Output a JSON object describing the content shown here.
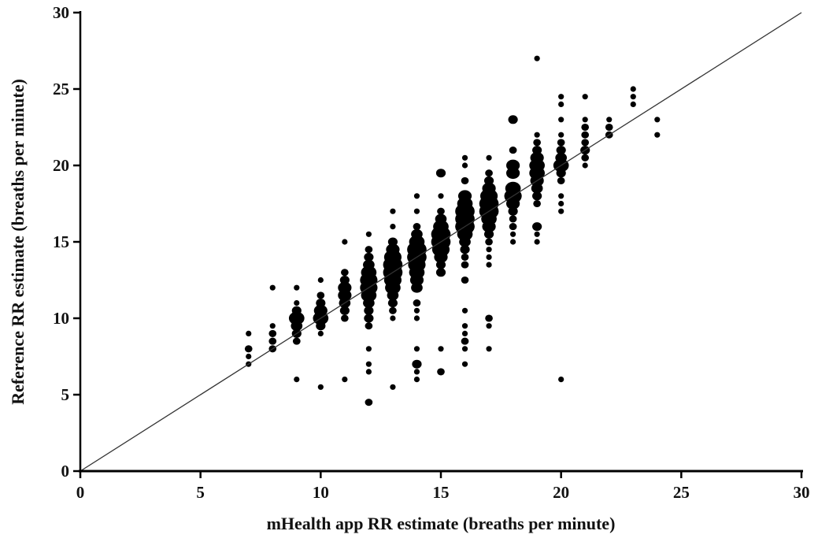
{
  "chart_data": {
    "type": "scatter",
    "xlabel": "mHealth app RR estimate (breaths per minute)",
    "ylabel": "Reference RR estimate (breaths per minute)",
    "xlim": [
      0,
      30
    ],
    "ylim": [
      0,
      30
    ],
    "xticks": [
      "0",
      "5",
      "10",
      "15",
      "20",
      "25",
      "30"
    ],
    "yticks": [
      "0",
      "5",
      "10",
      "15",
      "20",
      "25",
      "30"
    ],
    "grid": false,
    "identity_line": true,
    "point_size_encodes": "frequency of observations",
    "colors": {
      "points": "#000000",
      "axis": "#000000",
      "identity_line": "#333333"
    },
    "points": [
      {
        "x": 7,
        "y": 9,
        "n": 1
      },
      {
        "x": 7,
        "y": 8,
        "n": 2
      },
      {
        "x": 7,
        "y": 7.5,
        "n": 1
      },
      {
        "x": 7,
        "y": 7,
        "n": 1
      },
      {
        "x": 8,
        "y": 12,
        "n": 1
      },
      {
        "x": 8,
        "y": 9.5,
        "n": 1
      },
      {
        "x": 8,
        "y": 9,
        "n": 2
      },
      {
        "x": 8,
        "y": 8.5,
        "n": 2
      },
      {
        "x": 8,
        "y": 8,
        "n": 2
      },
      {
        "x": 9,
        "y": 12,
        "n": 1
      },
      {
        "x": 9,
        "y": 11,
        "n": 1
      },
      {
        "x": 9,
        "y": 10.5,
        "n": 3
      },
      {
        "x": 9,
        "y": 10,
        "n": 6
      },
      {
        "x": 9,
        "y": 9.5,
        "n": 4
      },
      {
        "x": 9,
        "y": 9,
        "n": 3
      },
      {
        "x": 9,
        "y": 8.5,
        "n": 2
      },
      {
        "x": 9,
        "y": 6,
        "n": 1
      },
      {
        "x": 10,
        "y": 12.5,
        "n": 1
      },
      {
        "x": 10,
        "y": 11.5,
        "n": 2
      },
      {
        "x": 10,
        "y": 11,
        "n": 3
      },
      {
        "x": 10,
        "y": 10.5,
        "n": 5
      },
      {
        "x": 10,
        "y": 10,
        "n": 6
      },
      {
        "x": 10,
        "y": 9.5,
        "n": 3
      },
      {
        "x": 10,
        "y": 9,
        "n": 1
      },
      {
        "x": 10,
        "y": 5.5,
        "n": 1
      },
      {
        "x": 11,
        "y": 15,
        "n": 1
      },
      {
        "x": 11,
        "y": 13,
        "n": 2
      },
      {
        "x": 11,
        "y": 12.5,
        "n": 3
      },
      {
        "x": 11,
        "y": 12,
        "n": 5
      },
      {
        "x": 11,
        "y": 11.5,
        "n": 5
      },
      {
        "x": 11,
        "y": 11,
        "n": 4
      },
      {
        "x": 11,
        "y": 10.5,
        "n": 3
      },
      {
        "x": 11,
        "y": 10,
        "n": 2
      },
      {
        "x": 11,
        "y": 6,
        "n": 1
      },
      {
        "x": 12,
        "y": 15.5,
        "n": 1
      },
      {
        "x": 12,
        "y": 14.5,
        "n": 2
      },
      {
        "x": 12,
        "y": 14,
        "n": 3
      },
      {
        "x": 12,
        "y": 13.5,
        "n": 4
      },
      {
        "x": 12,
        "y": 13,
        "n": 6
      },
      {
        "x": 12,
        "y": 12.5,
        "n": 7
      },
      {
        "x": 12,
        "y": 12,
        "n": 7
      },
      {
        "x": 12,
        "y": 11.5,
        "n": 6
      },
      {
        "x": 12,
        "y": 11,
        "n": 4
      },
      {
        "x": 12,
        "y": 10.5,
        "n": 3
      },
      {
        "x": 12,
        "y": 10,
        "n": 3
      },
      {
        "x": 12,
        "y": 9.5,
        "n": 2
      },
      {
        "x": 12,
        "y": 8,
        "n": 1
      },
      {
        "x": 12,
        "y": 7,
        "n": 1
      },
      {
        "x": 12,
        "y": 6.5,
        "n": 1
      },
      {
        "x": 12,
        "y": 4.5,
        "n": 2
      },
      {
        "x": 13,
        "y": 17,
        "n": 1
      },
      {
        "x": 13,
        "y": 16,
        "n": 1
      },
      {
        "x": 13,
        "y": 15,
        "n": 3
      },
      {
        "x": 13,
        "y": 14.5,
        "n": 5
      },
      {
        "x": 13,
        "y": 14,
        "n": 7
      },
      {
        "x": 13,
        "y": 13.5,
        "n": 8
      },
      {
        "x": 13,
        "y": 13,
        "n": 8
      },
      {
        "x": 13,
        "y": 12.5,
        "n": 7
      },
      {
        "x": 13,
        "y": 12,
        "n": 6
      },
      {
        "x": 13,
        "y": 11.5,
        "n": 4
      },
      {
        "x": 13,
        "y": 11,
        "n": 3
      },
      {
        "x": 13,
        "y": 10.5,
        "n": 2
      },
      {
        "x": 13,
        "y": 10,
        "n": 1
      },
      {
        "x": 13,
        "y": 5.5,
        "n": 1
      },
      {
        "x": 14,
        "y": 18,
        "n": 1
      },
      {
        "x": 14,
        "y": 17,
        "n": 1
      },
      {
        "x": 14,
        "y": 16,
        "n": 2
      },
      {
        "x": 14,
        "y": 15.5,
        "n": 4
      },
      {
        "x": 14,
        "y": 15,
        "n": 6
      },
      {
        "x": 14,
        "y": 14.5,
        "n": 8
      },
      {
        "x": 14,
        "y": 14,
        "n": 8
      },
      {
        "x": 14,
        "y": 13.5,
        "n": 7
      },
      {
        "x": 14,
        "y": 13,
        "n": 6
      },
      {
        "x": 14,
        "y": 12.5,
        "n": 5
      },
      {
        "x": 14,
        "y": 12,
        "n": 4
      },
      {
        "x": 14,
        "y": 11,
        "n": 2
      },
      {
        "x": 14,
        "y": 10.5,
        "n": 1
      },
      {
        "x": 14,
        "y": 10,
        "n": 1
      },
      {
        "x": 14,
        "y": 8,
        "n": 1
      },
      {
        "x": 14,
        "y": 7,
        "n": 3
      },
      {
        "x": 14,
        "y": 6.5,
        "n": 1
      },
      {
        "x": 14,
        "y": 6,
        "n": 1
      },
      {
        "x": 15,
        "y": 19.5,
        "n": 3
      },
      {
        "x": 15,
        "y": 18,
        "n": 1
      },
      {
        "x": 15,
        "y": 17,
        "n": 2
      },
      {
        "x": 15,
        "y": 16.5,
        "n": 4
      },
      {
        "x": 15,
        "y": 16,
        "n": 6
      },
      {
        "x": 15,
        "y": 15.5,
        "n": 8
      },
      {
        "x": 15,
        "y": 15,
        "n": 8
      },
      {
        "x": 15,
        "y": 14.5,
        "n": 7
      },
      {
        "x": 15,
        "y": 14,
        "n": 5
      },
      {
        "x": 15,
        "y": 13.5,
        "n": 3
      },
      {
        "x": 15,
        "y": 13,
        "n": 3
      },
      {
        "x": 15,
        "y": 8,
        "n": 1
      },
      {
        "x": 15,
        "y": 6.5,
        "n": 2
      },
      {
        "x": 16,
        "y": 20.5,
        "n": 1
      },
      {
        "x": 16,
        "y": 20,
        "n": 1
      },
      {
        "x": 16,
        "y": 19,
        "n": 2
      },
      {
        "x": 16,
        "y": 18,
        "n": 5
      },
      {
        "x": 16,
        "y": 17.5,
        "n": 6
      },
      {
        "x": 16,
        "y": 17,
        "n": 8
      },
      {
        "x": 16,
        "y": 16.5,
        "n": 8
      },
      {
        "x": 16,
        "y": 16,
        "n": 8
      },
      {
        "x": 16,
        "y": 15.5,
        "n": 6
      },
      {
        "x": 16,
        "y": 15,
        "n": 4
      },
      {
        "x": 16,
        "y": 14.5,
        "n": 3
      },
      {
        "x": 16,
        "y": 14,
        "n": 2
      },
      {
        "x": 16,
        "y": 13.5,
        "n": 2
      },
      {
        "x": 16,
        "y": 12.5,
        "n": 2
      },
      {
        "x": 16,
        "y": 10.5,
        "n": 1
      },
      {
        "x": 16,
        "y": 9.5,
        "n": 1
      },
      {
        "x": 16,
        "y": 9,
        "n": 1
      },
      {
        "x": 16,
        "y": 8.5,
        "n": 2
      },
      {
        "x": 16,
        "y": 8,
        "n": 1
      },
      {
        "x": 16,
        "y": 7,
        "n": 1
      },
      {
        "x": 17,
        "y": 20.5,
        "n": 1
      },
      {
        "x": 17,
        "y": 19.5,
        "n": 2
      },
      {
        "x": 17,
        "y": 19,
        "n": 3
      },
      {
        "x": 17,
        "y": 18.5,
        "n": 5
      },
      {
        "x": 17,
        "y": 18,
        "n": 7
      },
      {
        "x": 17,
        "y": 17.5,
        "n": 8
      },
      {
        "x": 17,
        "y": 17,
        "n": 8
      },
      {
        "x": 17,
        "y": 16.5,
        "n": 6
      },
      {
        "x": 17,
        "y": 16,
        "n": 5
      },
      {
        "x": 17,
        "y": 15.5,
        "n": 3
      },
      {
        "x": 17,
        "y": 15,
        "n": 2
      },
      {
        "x": 17,
        "y": 14.5,
        "n": 1
      },
      {
        "x": 17,
        "y": 14,
        "n": 1
      },
      {
        "x": 17,
        "y": 13.5,
        "n": 1
      },
      {
        "x": 17,
        "y": 10,
        "n": 2
      },
      {
        "x": 17,
        "y": 9.5,
        "n": 1
      },
      {
        "x": 17,
        "y": 8,
        "n": 1
      },
      {
        "x": 18,
        "y": 23,
        "n": 3
      },
      {
        "x": 18,
        "y": 21,
        "n": 2
      },
      {
        "x": 18,
        "y": 20,
        "n": 5
      },
      {
        "x": 18,
        "y": 19.5,
        "n": 5
      },
      {
        "x": 18,
        "y": 18.5,
        "n": 6
      },
      {
        "x": 18,
        "y": 18,
        "n": 7
      },
      {
        "x": 18,
        "y": 17.5,
        "n": 5
      },
      {
        "x": 18,
        "y": 17,
        "n": 3
      },
      {
        "x": 18,
        "y": 16.5,
        "n": 2
      },
      {
        "x": 18,
        "y": 16,
        "n": 2
      },
      {
        "x": 18,
        "y": 15.5,
        "n": 1
      },
      {
        "x": 18,
        "y": 15,
        "n": 1
      },
      {
        "x": 19,
        "y": 27,
        "n": 1
      },
      {
        "x": 19,
        "y": 22,
        "n": 1
      },
      {
        "x": 19,
        "y": 21.5,
        "n": 2
      },
      {
        "x": 19,
        "y": 21,
        "n": 3
      },
      {
        "x": 19,
        "y": 20.5,
        "n": 5
      },
      {
        "x": 19,
        "y": 20,
        "n": 6
      },
      {
        "x": 19,
        "y": 19.5,
        "n": 6
      },
      {
        "x": 19,
        "y": 19,
        "n": 5
      },
      {
        "x": 19,
        "y": 18.5,
        "n": 4
      },
      {
        "x": 19,
        "y": 18,
        "n": 3
      },
      {
        "x": 19,
        "y": 17.5,
        "n": 2
      },
      {
        "x": 19,
        "y": 16,
        "n": 3
      },
      {
        "x": 19,
        "y": 15.5,
        "n": 1
      },
      {
        "x": 19,
        "y": 15,
        "n": 1
      },
      {
        "x": 20,
        "y": 24.5,
        "n": 1
      },
      {
        "x": 20,
        "y": 24,
        "n": 1
      },
      {
        "x": 20,
        "y": 23,
        "n": 1
      },
      {
        "x": 20,
        "y": 22,
        "n": 1
      },
      {
        "x": 20,
        "y": 21.5,
        "n": 2
      },
      {
        "x": 20,
        "y": 21,
        "n": 3
      },
      {
        "x": 20,
        "y": 20.5,
        "n": 4
      },
      {
        "x": 20,
        "y": 20,
        "n": 6
      },
      {
        "x": 20,
        "y": 19.5,
        "n": 3
      },
      {
        "x": 20,
        "y": 19,
        "n": 2
      },
      {
        "x": 20,
        "y": 18,
        "n": 1
      },
      {
        "x": 20,
        "y": 17.5,
        "n": 1
      },
      {
        "x": 20,
        "y": 17,
        "n": 1
      },
      {
        "x": 20,
        "y": 6,
        "n": 1
      },
      {
        "x": 21,
        "y": 24.5,
        "n": 1
      },
      {
        "x": 21,
        "y": 23,
        "n": 1
      },
      {
        "x": 21,
        "y": 22.5,
        "n": 2
      },
      {
        "x": 21,
        "y": 22,
        "n": 2
      },
      {
        "x": 21,
        "y": 21.5,
        "n": 2
      },
      {
        "x": 21,
        "y": 21,
        "n": 3
      },
      {
        "x": 21,
        "y": 20.5,
        "n": 2
      },
      {
        "x": 21,
        "y": 20,
        "n": 1
      },
      {
        "x": 22,
        "y": 23,
        "n": 1
      },
      {
        "x": 22,
        "y": 22.5,
        "n": 2
      },
      {
        "x": 22,
        "y": 22,
        "n": 2
      },
      {
        "x": 23,
        "y": 25,
        "n": 1
      },
      {
        "x": 23,
        "y": 24.5,
        "n": 1
      },
      {
        "x": 23,
        "y": 24,
        "n": 1
      },
      {
        "x": 24,
        "y": 23,
        "n": 1
      },
      {
        "x": 24,
        "y": 22,
        "n": 1
      }
    ]
  }
}
